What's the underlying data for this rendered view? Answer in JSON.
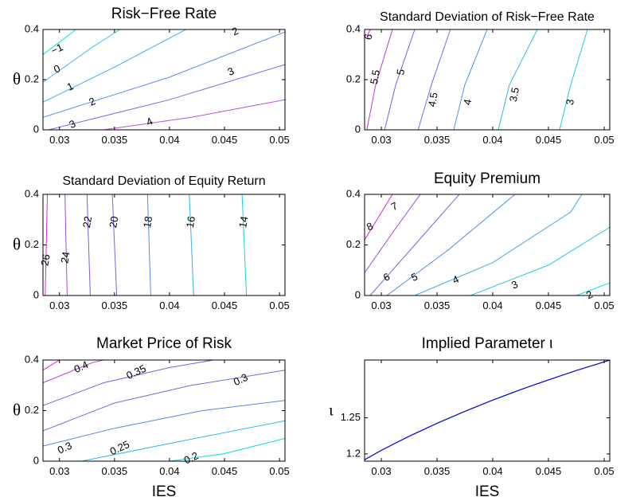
{
  "chart_data": [
    {
      "type": "contour",
      "title": "Risk−Free Rate",
      "xlabel": "",
      "ylabel": "θ",
      "xlim": [
        0.0285,
        0.0505
      ],
      "ylim": [
        0,
        0.4
      ],
      "xticks": [
        "0.03",
        "0.035",
        "0.04",
        "0.045",
        "0.05"
      ],
      "yticks": [
        "0",
        "0.2",
        "0.4"
      ],
      "levels": [
        {
          "label": "−1",
          "color": "#00e0e0",
          "line": [
            [
              0.0285,
              0.3
            ],
            [
              0.0315,
              0.4
            ]
          ],
          "label_at": [
            0.0298,
            0.32
          ]
        },
        {
          "label": "0",
          "color": "#2ec6e8",
          "line": [
            [
              0.0285,
              0.19
            ],
            [
              0.033,
              0.33
            ],
            [
              0.0355,
              0.4
            ]
          ],
          "label_at": [
            0.0298,
            0.24
          ]
        },
        {
          "label": "1",
          "color": "#43aee8",
          "line": [
            [
              0.0285,
              0.11
            ],
            [
              0.035,
              0.25
            ],
            [
              0.0415,
              0.4
            ]
          ],
          "label_at": [
            0.031,
            0.17
          ]
        },
        {
          "label": "2",
          "color": "#5b8fe6",
          "line": [
            [
              0.0285,
              0.05
            ],
            [
              0.04,
              0.21
            ],
            [
              0.0505,
              0.39
            ]
          ],
          "label_at": [
            0.033,
            0.11
          ]
        },
        {
          "label": "2",
          "color": "#5b8fe6",
          "line": [],
          "label_at": [
            0.046,
            0.39
          ]
        },
        {
          "label": "3",
          "color": "#7b6fe6",
          "line": [
            [
              0.029,
              0.0
            ],
            [
              0.04,
              0.12
            ],
            [
              0.0505,
              0.26
            ]
          ],
          "label_at": [
            0.0456,
            0.23
          ]
        },
        {
          "label": "3",
          "color": "#7b6fe6",
          "line": [],
          "label_at": [
            0.0312,
            0.02
          ]
        },
        {
          "label": "4",
          "color": "#b84fe0",
          "line": [
            [
              0.034,
              0.0
            ],
            [
              0.042,
              0.05
            ],
            [
              0.0505,
              0.12
            ]
          ],
          "label_at": [
            0.0382,
            0.03
          ]
        }
      ]
    },
    {
      "type": "contour",
      "title": "Standard Deviation of Risk−Free Rate",
      "xlabel": "",
      "ylabel": "",
      "xlim": [
        0.0285,
        0.0505
      ],
      "ylim": [
        0,
        0.4
      ],
      "xticks": [
        "0.03",
        "0.035",
        "0.04",
        "0.045",
        "0.05"
      ],
      "yticks": [
        "0",
        "0.2",
        "0.4"
      ],
      "levels": [
        {
          "label": "6",
          "color": "#e020e0",
          "line": [
            [
              0.029,
              0.4
            ],
            [
              0.0287,
              0.37
            ]
          ],
          "label_at": [
            0.0289,
            0.37
          ]
        },
        {
          "label": "5.5",
          "color": "#b33ee0",
          "line": [
            [
              0.0287,
              0.0
            ],
            [
              0.0295,
              0.18
            ],
            [
              0.031,
              0.4
            ]
          ],
          "label_at": [
            0.0295,
            0.21
          ]
        },
        {
          "label": "5",
          "color": "#8656e3",
          "line": [
            [
              0.0303,
              0.0
            ],
            [
              0.0313,
              0.18
            ],
            [
              0.033,
              0.4
            ]
          ],
          "label_at": [
            0.0318,
            0.23
          ]
        },
        {
          "label": "4.5",
          "color": "#5e75e6",
          "line": [
            [
              0.0333,
              0.0
            ],
            [
              0.0345,
              0.18
            ],
            [
              0.0362,
              0.4
            ]
          ],
          "label_at": [
            0.0347,
            0.12
          ]
        },
        {
          "label": "4",
          "color": "#4a93ea",
          "line": [
            [
              0.0365,
              0.0
            ],
            [
              0.0375,
              0.18
            ],
            [
              0.0395,
              0.4
            ]
          ],
          "label_at": [
            0.0378,
            0.11
          ]
        },
        {
          "label": "3.5",
          "color": "#2fb8e6",
          "line": [
            [
              0.0405,
              0.0
            ],
            [
              0.0415,
              0.18
            ],
            [
              0.044,
              0.4
            ]
          ],
          "label_at": [
            0.042,
            0.14
          ]
        },
        {
          "label": "3",
          "color": "#14d2e0",
          "line": [
            [
              0.046,
              0.0
            ],
            [
              0.047,
              0.18
            ],
            [
              0.0485,
              0.4
            ]
          ],
          "label_at": [
            0.047,
            0.11
          ]
        }
      ]
    },
    {
      "type": "contour",
      "title": "Standard Deviation of Equity Return",
      "xlabel": "",
      "ylabel": "θ",
      "xlim": [
        0.0285,
        0.0505
      ],
      "ylim": [
        0,
        0.4
      ],
      "xticks": [
        "0.03",
        "0.035",
        "0.04",
        "0.045",
        "0.05"
      ],
      "yticks": [
        "0",
        "0.2",
        "0.4"
      ],
      "levels": [
        {
          "label": "26",
          "color": "#e020e0",
          "line": [
            [
              0.0287,
              0.0
            ],
            [
              0.0289,
              0.4
            ]
          ],
          "label_at": [
            0.0288,
            0.14
          ]
        },
        {
          "label": "24",
          "color": "#a544e0",
          "line": [
            [
              0.0307,
              0.0
            ],
            [
              0.0305,
              0.4
            ]
          ],
          "label_at": [
            0.0306,
            0.15
          ]
        },
        {
          "label": "22",
          "color": "#8356e3",
          "line": [
            [
              0.0328,
              0.0
            ],
            [
              0.0325,
              0.4
            ]
          ],
          "label_at": [
            0.0326,
            0.29
          ]
        },
        {
          "label": "20",
          "color": "#6c6ae6",
          "line": [
            [
              0.0352,
              0.0
            ],
            [
              0.0348,
              0.4
            ]
          ],
          "label_at": [
            0.035,
            0.29
          ]
        },
        {
          "label": "18",
          "color": "#4c8ee8",
          "line": [
            [
              0.0383,
              0.0
            ],
            [
              0.038,
              0.4
            ]
          ],
          "label_at": [
            0.0381,
            0.29
          ]
        },
        {
          "label": "16",
          "color": "#35b0e6",
          "line": [
            [
              0.0422,
              0.0
            ],
            [
              0.0418,
              0.4
            ]
          ],
          "label_at": [
            0.042,
            0.29
          ]
        },
        {
          "label": "14",
          "color": "#1ad0e0",
          "line": [
            [
              0.047,
              0.0
            ],
            [
              0.0466,
              0.4
            ]
          ],
          "label_at": [
            0.0468,
            0.29
          ]
        }
      ]
    },
    {
      "type": "contour",
      "title": "Equity Premium",
      "xlabel": "",
      "ylabel": "",
      "xlim": [
        0.0285,
        0.0505
      ],
      "ylim": [
        0,
        0.4
      ],
      "xticks": [
        "0.03",
        "0.035",
        "0.04",
        "0.045",
        "0.05"
      ],
      "yticks": [
        "0",
        "0.2",
        "0.4"
      ],
      "levels": [
        {
          "label": "8",
          "color": "#d028e0",
          "line": [
            [
              0.0285,
              0.22
            ],
            [
              0.031,
              0.4
            ]
          ],
          "label_at": [
            0.029,
            0.27
          ]
        },
        {
          "label": "7",
          "color": "#9a48e0",
          "line": [
            [
              0.0285,
              0.09
            ],
            [
              0.0312,
              0.26
            ],
            [
              0.0335,
              0.4
            ]
          ],
          "label_at": [
            0.0312,
            0.35
          ]
        },
        {
          "label": "6",
          "color": "#6c68e6",
          "line": [
            [
              0.029,
              0.0
            ],
            [
              0.033,
              0.2
            ],
            [
              0.037,
              0.4
            ]
          ],
          "label_at": [
            0.0305,
            0.07
          ]
        },
        {
          "label": "5",
          "color": "#4f88e8",
          "line": [
            [
              0.0305,
              0.0
            ],
            [
              0.036,
              0.18
            ],
            [
              0.042,
              0.4
            ]
          ],
          "label_at": [
            0.033,
            0.07
          ]
        },
        {
          "label": "4",
          "color": "#3aa8e8",
          "line": [
            [
              0.033,
              0.0
            ],
            [
              0.04,
              0.13
            ],
            [
              0.047,
              0.33
            ],
            [
              0.048,
              0.4
            ]
          ],
          "label_at": [
            0.0367,
            0.06
          ]
        },
        {
          "label": "3",
          "color": "#22c4e6",
          "line": [
            [
              0.038,
              0.0
            ],
            [
              0.045,
              0.12
            ],
            [
              0.0505,
              0.27
            ]
          ],
          "label_at": [
            0.042,
            0.04
          ]
        },
        {
          "label": "2",
          "color": "#00e0e0",
          "line": [
            [
              0.0475,
              0.0
            ],
            [
              0.0505,
              0.05
            ]
          ],
          "label_at": [
            0.0487,
            0.0
          ]
        }
      ]
    },
    {
      "type": "contour",
      "title": "Market Price of Risk",
      "xlabel": "IES",
      "ylabel": "θ",
      "xlim": [
        0.0285,
        0.0505
      ],
      "ylim": [
        0,
        0.4
      ],
      "xticks": [
        "0.03",
        "0.035",
        "0.04",
        "0.045",
        "0.05"
      ],
      "yticks": [
        "0",
        "0.2",
        "0.4"
      ],
      "levels": [
        {
          "label": "",
          "color": "#e020e0",
          "line": [
            [
              0.0285,
              0.36
            ],
            [
              0.03,
              0.4
            ]
          ],
          "label_at": null
        },
        {
          "label": "0.4",
          "color": "#b040e0",
          "line": [
            [
              0.0285,
              0.31
            ],
            [
              0.033,
              0.39
            ],
            [
              0.034,
              0.4
            ]
          ],
          "label_at": [
            0.032,
            0.37
          ]
        },
        {
          "label": "0.35",
          "color": "#8858e3",
          "line": [
            [
              0.0285,
              0.22
            ],
            [
              0.034,
              0.31
            ],
            [
              0.04,
              0.37
            ],
            [
              0.044,
              0.4
            ]
          ],
          "label_at": [
            0.037,
            0.35
          ]
        },
        {
          "label": "0.3",
          "color": "#6870e6",
          "line": [
            [
              0.0285,
              0.12
            ],
            [
              0.035,
              0.23
            ],
            [
              0.042,
              0.3
            ],
            [
              0.0505,
              0.36
            ]
          ],
          "label_at": [
            0.0465,
            0.32
          ]
        },
        {
          "label": "0.3",
          "color": "#5088e8",
          "line": [
            [
              0.0285,
              0.06
            ],
            [
              0.035,
              0.13
            ],
            [
              0.043,
              0.2
            ],
            [
              0.0505,
              0.24
            ]
          ],
          "label_at": [
            0.0305,
            0.05
          ]
        },
        {
          "label": "0.25",
          "color": "#2eb8e6",
          "line": [
            [
              0.032,
              0.0
            ],
            [
              0.04,
              0.07
            ],
            [
              0.0505,
              0.16
            ]
          ],
          "label_at": [
            0.0355,
            0.05
          ]
        },
        {
          "label": "0.2",
          "color": "#00e0e0",
          "line": [
            [
              0.04,
              0.0
            ],
            [
              0.045,
              0.03
            ],
            [
              0.0505,
              0.09
            ]
          ],
          "label_at": [
            0.042,
            0.01
          ]
        }
      ]
    },
    {
      "type": "line",
      "title": "Implied Parameter ι",
      "xlabel": "IES",
      "ylabel": "ι",
      "xlim": [
        0.0285,
        0.0505
      ],
      "ylim": [
        1.19,
        1.33
      ],
      "xticks": [
        "0.03",
        "0.035",
        "0.04",
        "0.045",
        "0.05"
      ],
      "yticks": [
        "1.2",
        "1.25"
      ],
      "series": [
        {
          "color": "#0000cc",
          "x": [
            0.0285,
            0.03,
            0.0325,
            0.035,
            0.0375,
            0.04,
            0.0425,
            0.045,
            0.0475,
            0.05,
            0.0505
          ],
          "y": [
            1.192,
            1.205,
            1.2245,
            1.2425,
            1.259,
            1.2745,
            1.289,
            1.3025,
            1.3155,
            1.3275,
            1.33
          ]
        }
      ]
    }
  ]
}
